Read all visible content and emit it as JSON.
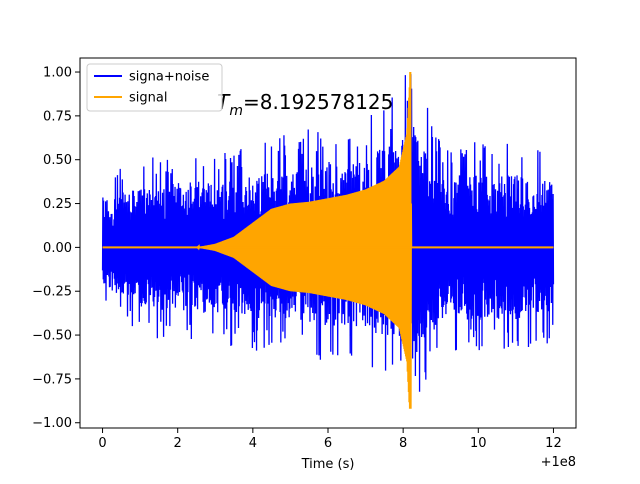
{
  "chart_data": {
    "type": "line",
    "title": "",
    "xlabel": "Time (s)",
    "ylabel": "",
    "x_offset_label": "+1e8",
    "xlim": [
      -0.6,
      12.6
    ],
    "ylim": [
      -1.03,
      1.08
    ],
    "x_ticks": [
      0,
      2,
      4,
      6,
      8,
      10,
      12
    ],
    "x_tick_labels": [
      "0",
      "2",
      "4",
      "6",
      "8",
      "10",
      "12"
    ],
    "y_ticks": [
      -1.0,
      -0.75,
      -0.5,
      -0.25,
      0.0,
      0.25,
      0.5,
      0.75,
      1.0
    ],
    "y_tick_labels": [
      "−1.00",
      "−0.75",
      "−0.50",
      "−0.25",
      "0.00",
      "0.25",
      "0.50",
      "0.75",
      "1.00"
    ],
    "grid": false,
    "legend_position": "top-left",
    "annotation": {
      "symbol": "T",
      "subscript": "m",
      "text": "=8.192578125",
      "x": 3.05,
      "y": 0.79
    },
    "series": [
      {
        "name": "signa+noise",
        "color": "#0000ff",
        "x_range": [
          0,
          12
        ],
        "noise_envelope": [
          {
            "x": 0,
            "low": -0.3,
            "high": 0.38
          },
          {
            "x": 1,
            "low": -0.45,
            "high": 0.45
          },
          {
            "x": 2,
            "low": -0.5,
            "high": 0.5
          },
          {
            "x": 3,
            "low": -0.5,
            "high": 0.5
          },
          {
            "x": 4,
            "low": -0.55,
            "high": 0.55
          },
          {
            "x": 5,
            "low": -0.55,
            "high": 0.6
          },
          {
            "x": 6,
            "low": -0.6,
            "high": 0.65
          },
          {
            "x": 7,
            "low": -0.65,
            "high": 0.68
          },
          {
            "x": 8,
            "low": -0.7,
            "high": 0.85
          },
          {
            "x": 8.19,
            "low": -0.9,
            "high": 1.0
          },
          {
            "x": 9,
            "low": -0.55,
            "high": 0.55
          },
          {
            "x": 10,
            "low": -0.55,
            "high": 0.55
          },
          {
            "x": 11,
            "low": -0.55,
            "high": 0.55
          },
          {
            "x": 12,
            "low": -0.5,
            "high": 0.5
          }
        ]
      },
      {
        "name": "signal",
        "color": "#ffa500",
        "x_range": [
          0,
          12
        ],
        "envelope": [
          {
            "x": 0,
            "amp": 0.0
          },
          {
            "x": 2.5,
            "amp": 0.0
          },
          {
            "x": 3.0,
            "amp": 0.02
          },
          {
            "x": 3.5,
            "amp": 0.06
          },
          {
            "x": 4.0,
            "amp": 0.14
          },
          {
            "x": 4.5,
            "amp": 0.22
          },
          {
            "x": 5.0,
            "amp": 0.25
          },
          {
            "x": 5.5,
            "amp": 0.26
          },
          {
            "x": 6.0,
            "amp": 0.28
          },
          {
            "x": 6.5,
            "amp": 0.3
          },
          {
            "x": 7.0,
            "amp": 0.33
          },
          {
            "x": 7.5,
            "amp": 0.38
          },
          {
            "x": 7.9,
            "amp": 0.46
          },
          {
            "x": 8.1,
            "amp": 0.65
          },
          {
            "x": 8.19,
            "amp": 1.0
          },
          {
            "x": 8.22,
            "amp": 0.0
          },
          {
            "x": 12,
            "amp": 0.0
          }
        ],
        "peak": {
          "x": 8.19,
          "max": 1.0,
          "min": -0.92
        }
      }
    ]
  }
}
